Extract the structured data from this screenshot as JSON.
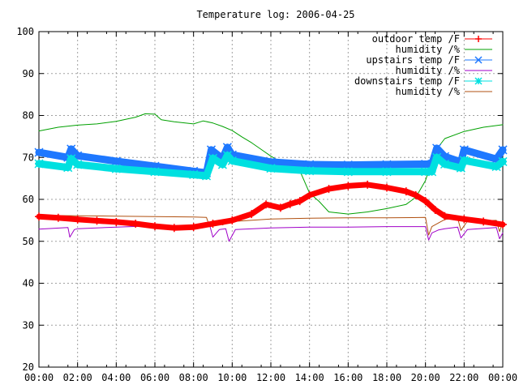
{
  "chart_data": {
    "type": "line",
    "title": "Temperature log: 2006-04-25",
    "xlabel": "",
    "ylabel": "",
    "xlim": [
      "00:00",
      "24:00"
    ],
    "ylim": [
      20,
      100
    ],
    "grid": true,
    "legend_position": "top-right",
    "x_ticks": [
      "00:00",
      "02:00",
      "04:00",
      "06:00",
      "08:00",
      "10:00",
      "12:00",
      "14:00",
      "16:00",
      "18:00",
      "20:00",
      "22:00",
      "00:00"
    ],
    "y_ticks": [
      "100",
      "90",
      "80",
      "70",
      "60",
      "50",
      "40",
      "30",
      "20"
    ],
    "series": [
      {
        "name": "outdoor temp /F",
        "color": "#ff0000",
        "marker": "plus",
        "x": [
          "00:00",
          "01:00",
          "02:00",
          "03:00",
          "04:00",
          "05:00",
          "06:00",
          "07:00",
          "08:00",
          "09:00",
          "10:00",
          "11:00",
          "11:45",
          "12:30",
          "13:00",
          "13:30",
          "14:00",
          "15:00",
          "16:00",
          "17:00",
          "18:00",
          "19:00",
          "19:30",
          "20:00",
          "20:30",
          "21:00",
          "22:00",
          "23:00",
          "24:00"
        ],
        "y": [
          55.9,
          55.6,
          55.2,
          54.9,
          54.6,
          54.2,
          53.6,
          53.2,
          53.4,
          54.2,
          55.0,
          56.5,
          58.8,
          58.0,
          58.9,
          59.6,
          61.0,
          62.5,
          63.2,
          63.5,
          62.8,
          61.9,
          61.0,
          59.6,
          57.5,
          56.0,
          55.3,
          54.7,
          54.0
        ]
      },
      {
        "name": "humidity /%",
        "color": "#00a000",
        "marker": "none",
        "x": [
          "00:00",
          "01:00",
          "02:00",
          "03:00",
          "04:00",
          "05:00",
          "05:30",
          "06:00",
          "06:20",
          "07:00",
          "08:00",
          "08:30",
          "09:00",
          "09:30",
          "10:00",
          "10:30",
          "11:00",
          "11:30",
          "12:00",
          "12:30",
          "13:00",
          "13:30",
          "14:00",
          "14:30",
          "15:00",
          "16:00",
          "17:00",
          "18:00",
          "19:00",
          "19:30",
          "20:00",
          "20:30",
          "21:00",
          "22:00",
          "23:00",
          "24:00"
        ],
        "y": [
          76.3,
          77.2,
          77.7,
          78.0,
          78.6,
          79.6,
          80.4,
          80.3,
          79.0,
          78.5,
          78.0,
          78.7,
          78.2,
          77.4,
          76.4,
          74.9,
          73.5,
          71.9,
          70.3,
          69.0,
          68.4,
          66.8,
          61.5,
          59.5,
          57.0,
          56.5,
          57.0,
          57.8,
          58.8,
          60.5,
          64.5,
          71.5,
          74.5,
          76.2,
          77.2,
          77.8
        ]
      },
      {
        "name": "upstairs temp /F",
        "color": "#1e78ff",
        "marker": "cross",
        "x": [
          "00:00",
          "01:30",
          "01:40",
          "02:00",
          "04:00",
          "06:00",
          "08:00",
          "08:40",
          "08:55",
          "09:30",
          "09:45",
          "10:00",
          "12:00",
          "14:00",
          "16:00",
          "18:00",
          "20:00",
          "20:20",
          "20:35",
          "21:00",
          "21:50",
          "22:00",
          "23:40",
          "24:00"
        ],
        "y": [
          71.2,
          70.0,
          72.0,
          70.4,
          69.1,
          67.9,
          66.7,
          66.3,
          71.8,
          69.7,
          72.4,
          70.6,
          68.9,
          68.3,
          68.2,
          68.3,
          68.4,
          68.4,
          72.2,
          70.2,
          68.9,
          71.8,
          69.6,
          71.8
        ]
      },
      {
        "name": "humidity /%",
        "color": "#a000c8",
        "marker": "none",
        "x": [
          "00:00",
          "01:30",
          "01:36",
          "01:50",
          "02:00",
          "04:00",
          "06:00",
          "08:00",
          "08:50",
          "09:00",
          "09:20",
          "09:40",
          "09:50",
          "10:10",
          "12:00",
          "14:00",
          "16:00",
          "18:00",
          "20:00",
          "20:10",
          "20:20",
          "20:40",
          "21:00",
          "21:40",
          "21:50",
          "22:10",
          "23:40",
          "23:50",
          "24:00"
        ],
        "y": [
          52.9,
          53.3,
          51.0,
          52.8,
          53.0,
          53.4,
          53.7,
          53.8,
          53.9,
          51.0,
          52.8,
          53.0,
          50.0,
          52.8,
          53.2,
          53.4,
          53.4,
          53.5,
          53.5,
          50.3,
          52.0,
          52.7,
          53.0,
          53.4,
          50.8,
          52.8,
          53.3,
          50.6,
          52.0
        ]
      },
      {
        "name": "downstairs temp /F",
        "color": "#00e0e0",
        "marker": "star",
        "x": [
          "00:00",
          "01:30",
          "01:40",
          "02:00",
          "04:00",
          "06:00",
          "08:00",
          "08:40",
          "09:00",
          "09:30",
          "09:45",
          "10:00",
          "12:00",
          "14:00",
          "16:00",
          "18:00",
          "20:00",
          "20:20",
          "20:35",
          "21:00",
          "21:50",
          "22:00",
          "23:40",
          "24:00"
        ],
        "y": [
          68.5,
          67.6,
          69.7,
          68.3,
          67.3,
          66.6,
          65.9,
          65.6,
          69.8,
          68.3,
          70.5,
          69.2,
          67.4,
          66.8,
          66.6,
          66.6,
          66.6,
          66.6,
          70.0,
          68.4,
          67.5,
          69.3,
          67.8,
          69.0
        ]
      },
      {
        "name": "humidity /%",
        "color": "#b05010",
        "marker": "none",
        "x": [
          "00:00",
          "02:00",
          "04:00",
          "06:00",
          "08:00",
          "08:40",
          "08:50",
          "09:20",
          "09:30",
          "09:50",
          "10:00",
          "12:00",
          "14:00",
          "16:00",
          "18:00",
          "20:00",
          "20:10",
          "20:20",
          "21:00",
          "21:40",
          "21:50",
          "22:10",
          "23:40",
          "23:50",
          "24:00"
        ],
        "y": [
          56.2,
          56.1,
          56.0,
          55.9,
          55.8,
          55.7,
          53.5,
          54.6,
          53.9,
          54.6,
          54.7,
          55.3,
          55.5,
          55.6,
          55.6,
          55.7,
          51.5,
          53.5,
          55.2,
          55.5,
          52.6,
          54.8,
          55.0,
          52.3,
          54.5
        ]
      }
    ]
  }
}
